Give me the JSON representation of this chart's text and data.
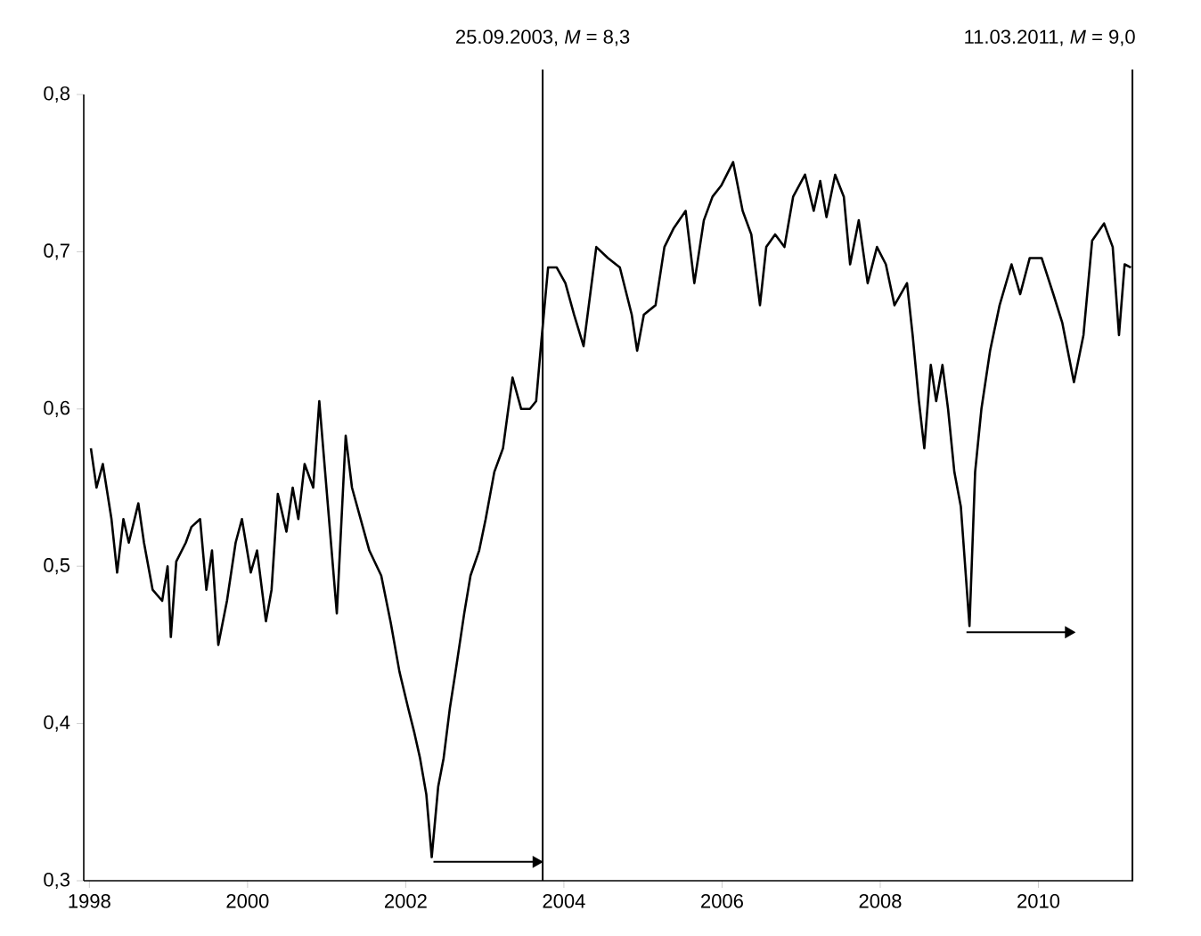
{
  "chart_data": {
    "type": "line",
    "xlim": [
      "1997-12-06",
      "2011-03-15"
    ],
    "ylim": [
      0.3,
      0.8
    ],
    "xticks": [
      "1998",
      "2000",
      "2002",
      "2004",
      "2006",
      "2008",
      "2010"
    ],
    "yticks": [
      {
        "value": 0.3,
        "label": "0,3"
      },
      {
        "value": 0.4,
        "label": "0,4"
      },
      {
        "value": 0.5,
        "label": "0,5"
      },
      {
        "value": 0.6,
        "label": "0,6"
      },
      {
        "value": 0.7,
        "label": "0,7"
      },
      {
        "value": 0.8,
        "label": "0,8"
      }
    ],
    "ref_lines": [
      {
        "axis": "x",
        "value": "2003-09-25",
        "label": "25.09.2003, *M* = 8,3",
        "color": "#000000"
      },
      {
        "axis": "x",
        "value": "2011-03-11",
        "label": "11.03.2011, *M* = 9,0",
        "color": "#000000"
      }
    ],
    "series": [
      {
        "color": "#000000",
        "x": [
          "1998-01-08",
          "1998-02-03",
          "1998-03-04",
          "1998-04-13",
          "1998-05-09",
          "1998-06-07",
          "1998-07-02",
          "1998-08-15",
          "1998-09-10",
          "1998-10-20",
          "1998-12-03",
          "1998-12-28",
          "1999-01-12",
          "1999-02-06",
          "1999-03-22",
          "1999-04-17",
          "1999-05-27",
          "1999-06-25",
          "1999-07-21",
          "1999-08-19",
          "1999-09-28",
          "1999-11-07",
          "1999-12-06",
          "2000-01-16",
          "2000-02-14",
          "2000-03-26",
          "2000-04-21",
          "2000-05-20",
          "2000-06-29",
          "2000-07-28",
          "2000-08-23",
          "2000-09-21",
          "2000-10-31",
          "2000-11-28",
          "2000-12-25",
          "2001-02-17",
          "2001-03-30",
          "2001-04-28",
          "2001-06-07",
          "2001-07-17",
          "2001-09-10",
          "2001-10-24",
          "2001-12-03",
          "2002-01-12",
          "2002-02-10",
          "2002-03-08",
          "2002-04-06",
          "2002-05-01",
          "2002-05-31",
          "2002-06-25",
          "2002-07-24",
          "2002-08-19",
          "2002-09-28",
          "2002-10-27",
          "2002-12-06",
          "2003-01-05",
          "2003-02-14",
          "2003-03-26",
          "2003-05-09",
          "2003-06-18",
          "2003-07-28",
          "2003-08-26",
          "2003-09-17",
          "2003-10-20",
          "2003-11-29",
          "2004-01-08",
          "2004-02-17",
          "2004-04-01",
          "2004-05-30",
          "2004-07-23",
          "2004-09-16",
          "2004-11-10",
          "2004-12-05",
          "2005-01-05",
          "2005-02-28",
          "2005-04-10",
          "2005-05-23",
          "2005-07-17",
          "2005-08-26",
          "2005-10-09",
          "2005-11-18",
          "2005-12-28",
          "2006-02-21",
          "2006-04-06",
          "2006-05-16",
          "2006-06-25",
          "2006-07-24",
          "2006-09-03",
          "2006-10-16",
          "2006-11-25",
          "2007-01-19",
          "2007-02-28",
          "2007-03-30",
          "2007-04-28",
          "2007-06-07",
          "2007-07-17",
          "2007-08-15",
          "2007-09-24",
          "2007-11-04",
          "2007-12-17",
          "2008-01-27",
          "2008-03-07",
          "2008-05-04",
          "2008-05-30",
          "2008-06-28",
          "2008-07-23",
          "2008-08-22",
          "2008-09-16",
          "2008-10-15",
          "2008-11-10",
          "2008-12-09",
          "2009-01-08",
          "2009-02-17",
          "2009-03-15",
          "2009-04-13",
          "2009-05-23",
          "2009-07-06",
          "2009-08-30",
          "2009-10-09",
          "2009-11-22",
          "2010-01-16",
          "2010-03-11",
          "2010-04-21",
          "2010-06-14",
          "2010-07-28",
          "2010-09-06",
          "2010-10-31",
          "2010-12-10",
          "2011-01-08",
          "2011-02-03",
          "2011-03-04"
        ],
        "values": [
          0.575,
          0.55,
          0.565,
          0.53,
          0.496,
          0.53,
          0.515,
          0.54,
          0.515,
          0.485,
          0.478,
          0.5,
          0.455,
          0.503,
          0.515,
          0.525,
          0.53,
          0.485,
          0.51,
          0.45,
          0.478,
          0.515,
          0.53,
          0.496,
          0.51,
          0.465,
          0.485,
          0.546,
          0.522,
          0.55,
          0.53,
          0.565,
          0.55,
          0.605,
          0.56,
          0.47,
          0.583,
          0.55,
          0.53,
          0.51,
          0.494,
          0.464,
          0.433,
          0.41,
          0.394,
          0.378,
          0.355,
          0.315,
          0.36,
          0.378,
          0.41,
          0.433,
          0.47,
          0.494,
          0.51,
          0.53,
          0.56,
          0.575,
          0.62,
          0.6,
          0.6,
          0.605,
          0.64,
          0.69,
          0.69,
          0.68,
          0.66,
          0.64,
          0.703,
          0.696,
          0.69,
          0.66,
          0.637,
          0.66,
          0.666,
          0.703,
          0.715,
          0.726,
          0.68,
          0.72,
          0.735,
          0.742,
          0.757,
          0.726,
          0.711,
          0.666,
          0.703,
          0.711,
          0.703,
          0.735,
          0.749,
          0.726,
          0.745,
          0.722,
          0.749,
          0.735,
          0.692,
          0.72,
          0.68,
          0.703,
          0.692,
          0.666,
          0.68,
          0.647,
          0.605,
          0.575,
          0.628,
          0.605,
          0.628,
          0.6,
          0.56,
          0.538,
          0.462,
          0.56,
          0.6,
          0.637,
          0.666,
          0.692,
          0.673,
          0.696,
          0.696,
          0.673,
          0.655,
          0.617,
          0.647,
          0.707,
          0.718,
          0.703,
          0.647,
          0.692,
          0.69
        ]
      },
      {
        "color": "#000000",
        "marker": "triangle",
        "x": [
          "2002-05-09",
          "2003-08-26"
        ],
        "values": [
          0.312,
          0.312
        ]
      },
      {
        "color": "#000000",
        "marker": "triangle",
        "x": [
          "2009-02-03",
          "2010-05-20"
        ],
        "values": [
          0.458,
          0.458
        ]
      }
    ]
  }
}
